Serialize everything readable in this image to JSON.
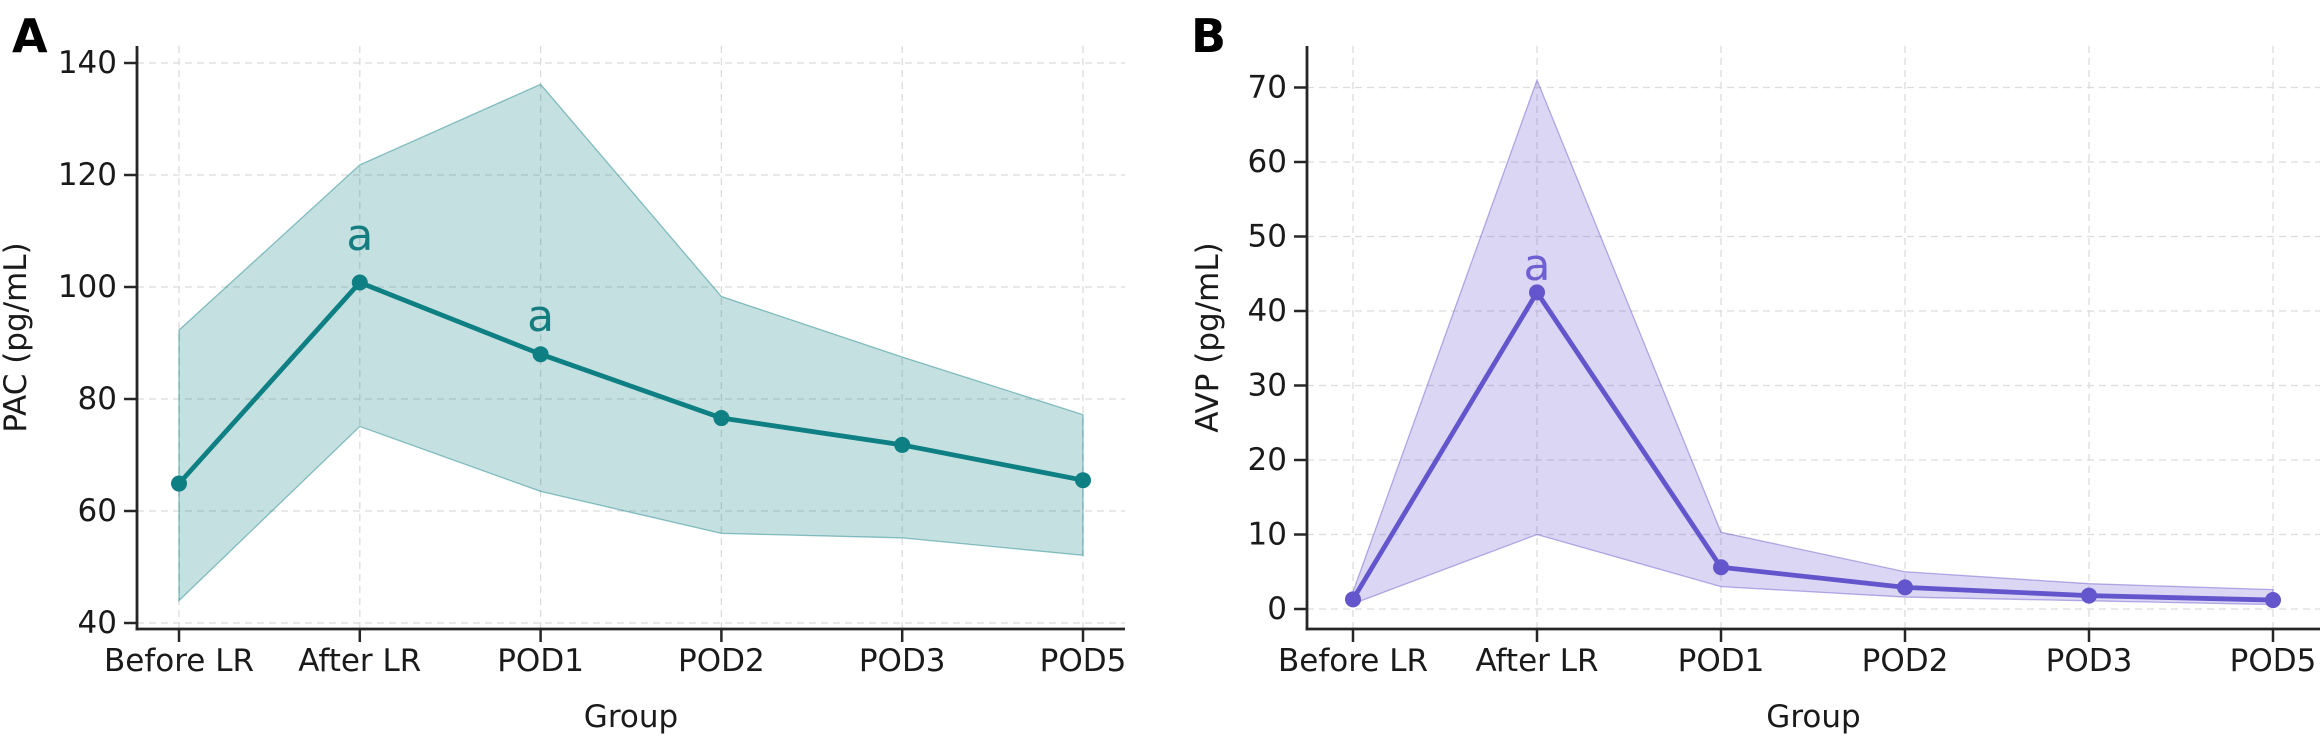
{
  "figure": {
    "panel_letters": [
      "A",
      "B"
    ],
    "background": "#FFFFFF",
    "axis_color": "#262626",
    "grid_color": "#DCDCDC",
    "tick_label_color": "#1A1A1A"
  },
  "chart_data": [
    {
      "type": "line",
      "panel": "A",
      "title": "",
      "xlabel": "Group",
      "ylabel": "PAC (pg/mL)",
      "categories": [
        "Before LR",
        "After LR",
        "POD1",
        "POD2",
        "POD3",
        "POD5"
      ],
      "series": [
        {
          "name": "mean",
          "values": [
            64.9,
            100.8,
            88.0,
            76.6,
            71.8,
            65.5
          ]
        },
        {
          "name": "band_upper",
          "values": [
            92.3,
            121.8,
            136.2,
            98.3,
            87.5,
            77.2
          ]
        },
        {
          "name": "band_lower",
          "values": [
            44.0,
            75.1,
            63.5,
            56.0,
            55.2,
            52.1
          ]
        }
      ],
      "yticks": [
        40,
        60,
        80,
        100,
        120,
        140
      ],
      "ylim": [
        39,
        143
      ],
      "grid": true,
      "legend": false,
      "line_color": "#0E7F82",
      "band_opacity": 0.24,
      "annotation_color": "#157C80",
      "annotations": [
        {
          "text": "a",
          "category": "After LR"
        },
        {
          "text": "a",
          "category": "POD1"
        }
      ]
    },
    {
      "type": "line",
      "panel": "B",
      "title": "",
      "xlabel": "Group",
      "ylabel": "AVP (pg/mL)",
      "categories": [
        "Before LR",
        "After LR",
        "POD1",
        "POD2",
        "POD3",
        "POD5"
      ],
      "series": [
        {
          "name": "mean",
          "values": [
            1.3,
            42.5,
            5.6,
            2.9,
            1.8,
            1.2
          ]
        },
        {
          "name": "band_upper",
          "values": [
            2.3,
            71.0,
            10.3,
            5.0,
            3.4,
            2.6
          ]
        },
        {
          "name": "band_lower",
          "values": [
            0.7,
            10.0,
            3.0,
            1.6,
            1.1,
            0.6
          ]
        }
      ],
      "yticks": [
        0,
        10,
        20,
        30,
        40,
        50,
        60,
        70
      ],
      "ylim": [
        -3,
        75.5
      ],
      "grid": true,
      "legend": false,
      "line_color": "#6355CB",
      "band_opacity": 0.24,
      "annotation_color": "#6E60D0",
      "annotations": [
        {
          "text": "a",
          "category": "After LR"
        }
      ]
    }
  ]
}
